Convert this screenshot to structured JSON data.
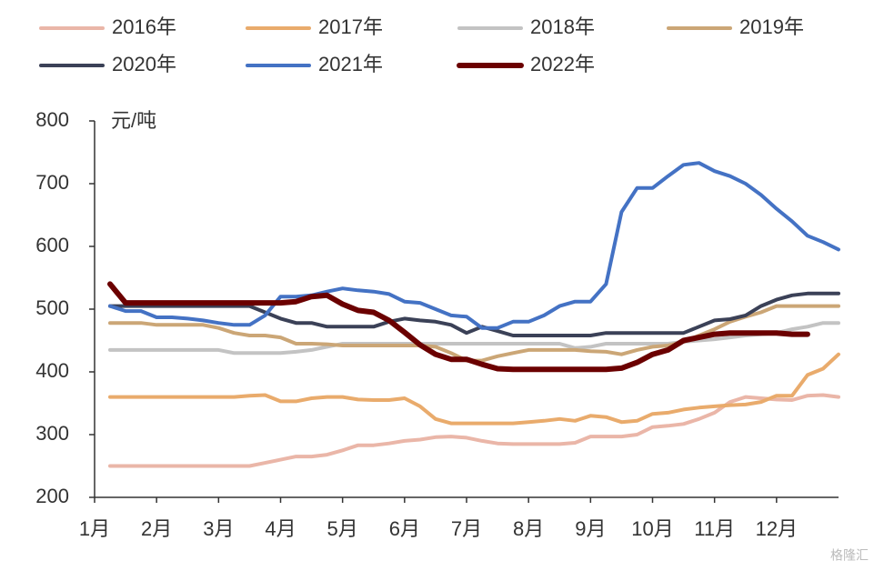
{
  "chart_data": {
    "type": "line",
    "y_axis_label": "元/吨",
    "watermark": "格隆汇",
    "x": [
      0.25,
      0.5,
      0.75,
      1.0,
      1.25,
      1.5,
      1.75,
      2.0,
      2.25,
      2.5,
      2.75,
      3.0,
      3.25,
      3.5,
      3.75,
      4.0,
      4.25,
      4.5,
      4.75,
      5.0,
      5.25,
      5.5,
      5.75,
      6.0,
      6.25,
      6.5,
      6.75,
      7.0,
      7.25,
      7.5,
      7.75,
      8.0,
      8.25,
      8.5,
      8.75,
      9.0,
      9.25,
      9.5,
      9.75,
      10.0,
      10.25,
      10.5,
      10.75,
      11.0,
      11.25,
      11.5,
      11.75,
      12.0
    ],
    "xlim": [
      0,
      12
    ],
    "xticks": [
      {
        "value": 0,
        "label": "1月"
      },
      {
        "value": 1,
        "label": "2月"
      },
      {
        "value": 2,
        "label": "3月"
      },
      {
        "value": 3,
        "label": "4月"
      },
      {
        "value": 4,
        "label": "5月"
      },
      {
        "value": 5,
        "label": "6月"
      },
      {
        "value": 6,
        "label": "7月"
      },
      {
        "value": 7,
        "label": "8月"
      },
      {
        "value": 8,
        "label": "9月"
      },
      {
        "value": 9,
        "label": "10月"
      },
      {
        "value": 10,
        "label": "11月"
      },
      {
        "value": 11,
        "label": "12月"
      }
    ],
    "ylim": [
      200,
      800
    ],
    "yticks": [
      200,
      300,
      400,
      500,
      600,
      700,
      800
    ],
    "series": [
      {
        "name": "2016年",
        "color": "#eab6a8",
        "width": 4,
        "values": [
          250,
          250,
          250,
          250,
          250,
          250,
          250,
          250,
          250,
          250,
          255,
          260,
          265,
          265,
          268,
          275,
          283,
          283,
          286,
          290,
          292,
          296,
          297,
          295,
          290,
          286,
          285,
          285,
          285,
          285,
          287,
          297,
          297,
          297,
          300,
          312,
          314,
          317,
          325,
          335,
          352,
          360,
          358,
          356,
          355,
          362,
          363,
          360
        ]
      },
      {
        "name": "2017年",
        "color": "#e9ab6c",
        "width": 4,
        "values": [
          360,
          360,
          360,
          360,
          360,
          360,
          360,
          360,
          360,
          362,
          363,
          353,
          353,
          358,
          360,
          360,
          356,
          355,
          355,
          358,
          345,
          325,
          318,
          318,
          318,
          318,
          318,
          320,
          322,
          325,
          322,
          330,
          328,
          320,
          322,
          333,
          335,
          340,
          343,
          345,
          347,
          348,
          352,
          362,
          362,
          395,
          405,
          428
        ]
      },
      {
        "name": "2018年",
        "color": "#c3c3c3",
        "width": 4,
        "values": [
          435,
          435,
          435,
          435,
          435,
          435,
          435,
          435,
          430,
          430,
          430,
          430,
          432,
          435,
          440,
          445,
          445,
          445,
          445,
          445,
          445,
          445,
          445,
          445,
          445,
          445,
          445,
          445,
          445,
          445,
          438,
          440,
          445,
          445,
          445,
          445,
          445,
          448,
          450,
          452,
          455,
          458,
          460,
          462,
          468,
          472,
          478,
          478
        ]
      },
      {
        "name": "2019年",
        "color": "#cba676",
        "width": 4,
        "values": [
          478,
          478,
          478,
          475,
          475,
          475,
          475,
          470,
          462,
          458,
          458,
          455,
          445,
          445,
          444,
          442,
          442,
          442,
          442,
          442,
          442,
          440,
          430,
          418,
          418,
          425,
          430,
          435,
          435,
          435,
          435,
          433,
          432,
          428,
          435,
          440,
          442,
          448,
          458,
          468,
          480,
          488,
          495,
          505,
          505,
          505,
          505,
          505
        ]
      },
      {
        "name": "2020年",
        "color": "#3b4157",
        "width": 4,
        "values": [
          505,
          505,
          505,
          505,
          505,
          505,
          505,
          505,
          505,
          505,
          495,
          485,
          478,
          478,
          472,
          472,
          472,
          472,
          480,
          485,
          482,
          480,
          475,
          462,
          472,
          465,
          458,
          458,
          458,
          458,
          458,
          458,
          462,
          462,
          462,
          462,
          462,
          462,
          472,
          482,
          484,
          490,
          505,
          515,
          522,
          525,
          525,
          525
        ]
      },
      {
        "name": "2021年",
        "color": "#4472c4",
        "width": 4,
        "values": [
          505,
          497,
          497,
          487,
          487,
          485,
          482,
          478,
          475,
          475,
          490,
          520,
          520,
          522,
          528,
          533,
          530,
          528,
          524,
          512,
          510,
          500,
          490,
          488,
          470,
          470,
          480,
          480,
          490,
          505,
          512,
          512,
          540,
          655,
          693,
          693,
          712,
          730,
          733,
          720,
          712,
          700,
          682,
          660,
          640,
          617,
          607,
          595
        ]
      },
      {
        "name": "2022年",
        "color": "#6b0000",
        "width": 6,
        "values": [
          540,
          510,
          510,
          510,
          510,
          510,
          510,
          510,
          510,
          510,
          510,
          510,
          512,
          520,
          522,
          508,
          498,
          495,
          482,
          463,
          443,
          428,
          420,
          420,
          412,
          405,
          404,
          404,
          404,
          404,
          404,
          404,
          404,
          406,
          415,
          428,
          435,
          450,
          455,
          460,
          462,
          462,
          462,
          462,
          460,
          460,
          null,
          null
        ]
      }
    ]
  }
}
